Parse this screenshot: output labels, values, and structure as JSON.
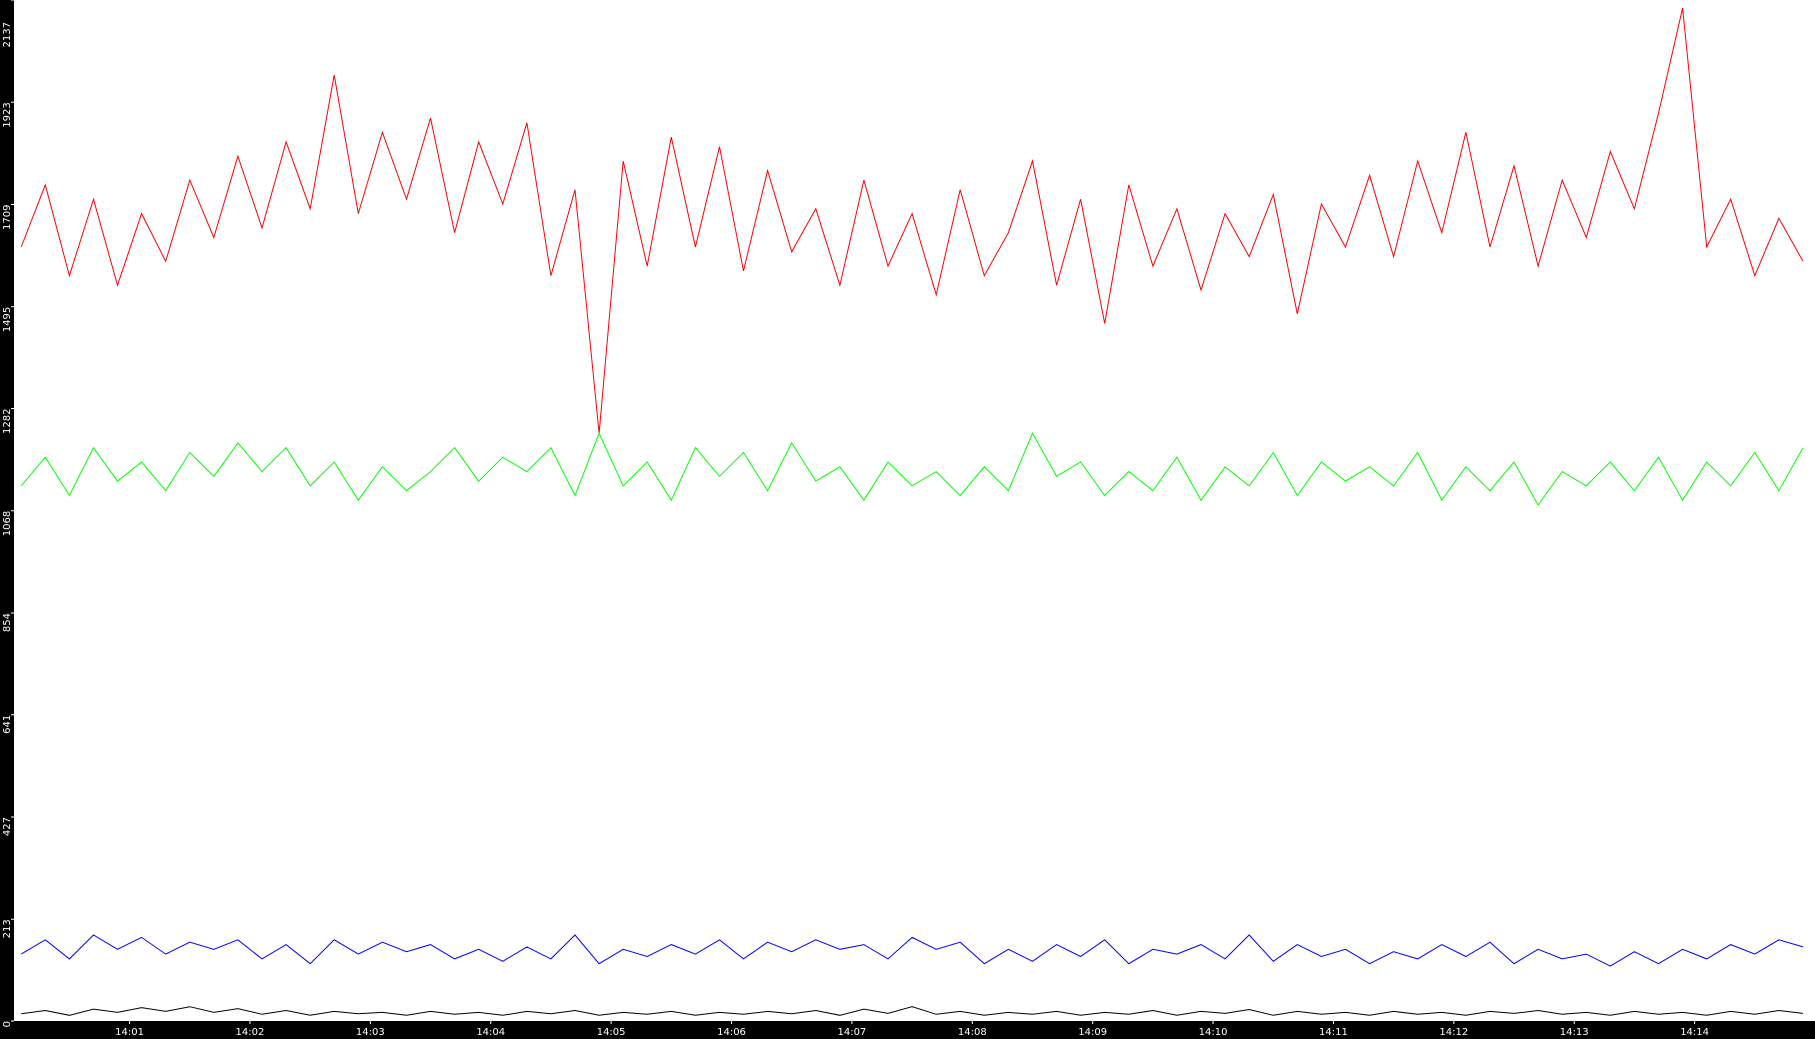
{
  "chart_data": {
    "type": "line",
    "x": [
      0.1,
      0.3,
      0.5,
      0.7,
      0.9,
      1.1,
      1.3,
      1.5,
      1.7,
      1.9,
      2.1,
      2.3,
      2.5,
      2.7,
      2.9,
      3.1,
      3.3,
      3.5,
      3.7,
      3.9,
      4.1,
      4.3,
      4.5,
      4.7,
      4.9,
      5.1,
      5.3,
      5.5,
      5.7,
      5.9,
      6.1,
      6.3,
      6.5,
      6.7,
      6.9,
      7.1,
      7.3,
      7.5,
      7.7,
      7.9,
      8.1,
      8.3,
      8.5,
      8.7,
      8.9,
      9.1,
      9.3,
      9.5,
      9.7,
      9.9,
      10.1,
      10.3,
      10.5,
      10.7,
      10.9,
      11.1,
      11.3,
      11.5,
      11.7,
      11.9,
      12.1,
      12.3,
      12.5,
      12.7,
      12.9,
      13.1,
      13.3,
      13.5,
      13.7,
      13.9,
      14.1,
      14.3,
      14.5,
      14.7,
      14.9
    ],
    "series": [
      {
        "color": "#ff0000",
        "values": [
          1620,
          1750,
          1560,
          1720,
          1540,
          1690,
          1590,
          1760,
          1640,
          1810,
          1660,
          1840,
          1700,
          1980,
          1690,
          1860,
          1720,
          1890,
          1650,
          1840,
          1710,
          1880,
          1560,
          1740,
          1230,
          1800,
          1580,
          1850,
          1620,
          1830,
          1570,
          1780,
          1610,
          1700,
          1540,
          1760,
          1580,
          1690,
          1520,
          1740,
          1560,
          1650,
          1800,
          1540,
          1720,
          1460,
          1750,
          1580,
          1700,
          1530,
          1690,
          1600,
          1730,
          1480,
          1710,
          1620,
          1770,
          1600,
          1800,
          1650,
          1860,
          1620,
          1790,
          1580,
          1760,
          1640,
          1820,
          1700,
          1900,
          2120,
          1620,
          1720,
          1560,
          1680,
          1590
        ]
      },
      {
        "color": "#00ff00",
        "values": [
          1120,
          1180,
          1100,
          1200,
          1130,
          1170,
          1110,
          1190,
          1140,
          1210,
          1150,
          1200,
          1120,
          1170,
          1090,
          1160,
          1110,
          1150,
          1200,
          1130,
          1180,
          1150,
          1200,
          1100,
          1230,
          1120,
          1170,
          1090,
          1200,
          1140,
          1190,
          1110,
          1210,
          1130,
          1160,
          1090,
          1170,
          1120,
          1150,
          1100,
          1160,
          1110,
          1230,
          1140,
          1170,
          1100,
          1150,
          1110,
          1180,
          1090,
          1160,
          1120,
          1190,
          1100,
          1170,
          1130,
          1160,
          1120,
          1190,
          1090,
          1160,
          1110,
          1170,
          1080,
          1150,
          1120,
          1170,
          1110,
          1180,
          1090,
          1170,
          1120,
          1190,
          1110,
          1200
        ]
      },
      {
        "color": "#0000ff",
        "values": [
          140,
          170,
          130,
          180,
          150,
          175,
          140,
          165,
          150,
          170,
          130,
          160,
          120,
          170,
          140,
          165,
          145,
          160,
          130,
          150,
          125,
          155,
          130,
          180,
          120,
          150,
          135,
          160,
          140,
          170,
          130,
          165,
          145,
          170,
          150,
          160,
          130,
          175,
          150,
          165,
          120,
          150,
          125,
          160,
          135,
          170,
          120,
          150,
          140,
          160,
          130,
          180,
          125,
          160,
          135,
          150,
          120,
          145,
          130,
          160,
          135,
          165,
          120,
          150,
          130,
          140,
          115,
          145,
          120,
          150,
          130,
          160,
          140,
          170,
          155
        ]
      },
      {
        "color": "#000000",
        "values": [
          15,
          22,
          12,
          25,
          18,
          28,
          20,
          30,
          18,
          26,
          14,
          22,
          12,
          20,
          15,
          18,
          12,
          20,
          14,
          18,
          12,
          20,
          15,
          22,
          12,
          18,
          14,
          20,
          12,
          18,
          14,
          20,
          15,
          22,
          12,
          25,
          16,
          30,
          14,
          20,
          12,
          18,
          14,
          20,
          12,
          18,
          14,
          22,
          12,
          20,
          16,
          24,
          12,
          20,
          14,
          18,
          12,
          20,
          14,
          18,
          12,
          20,
          16,
          22,
          14,
          18,
          12,
          20,
          14,
          18,
          12,
          20,
          14,
          22,
          16
        ]
      }
    ],
    "xlim": [
      0.04,
      15.0
    ],
    "xticks": [
      {
        "value": 1,
        "label": "14:01"
      },
      {
        "value": 2,
        "label": "14:02"
      },
      {
        "value": 3,
        "label": "14:03"
      },
      {
        "value": 4,
        "label": "14:04"
      },
      {
        "value": 5,
        "label": "14:05"
      },
      {
        "value": 6,
        "label": "14:06"
      },
      {
        "value": 7,
        "label": "14:07"
      },
      {
        "value": 8,
        "label": "14:08"
      },
      {
        "value": 9,
        "label": "14:09"
      },
      {
        "value": 10,
        "label": "14:10"
      },
      {
        "value": 11,
        "label": "14:11"
      },
      {
        "value": 12,
        "label": "14:12"
      },
      {
        "value": 13,
        "label": "14:13"
      },
      {
        "value": 14,
        "label": "14:14"
      }
    ],
    "ylim": [
      0,
      2137
    ],
    "yticks": [
      0,
      213,
      427,
      641,
      854,
      1068,
      1282,
      1495,
      1709,
      1923,
      2137
    ]
  }
}
